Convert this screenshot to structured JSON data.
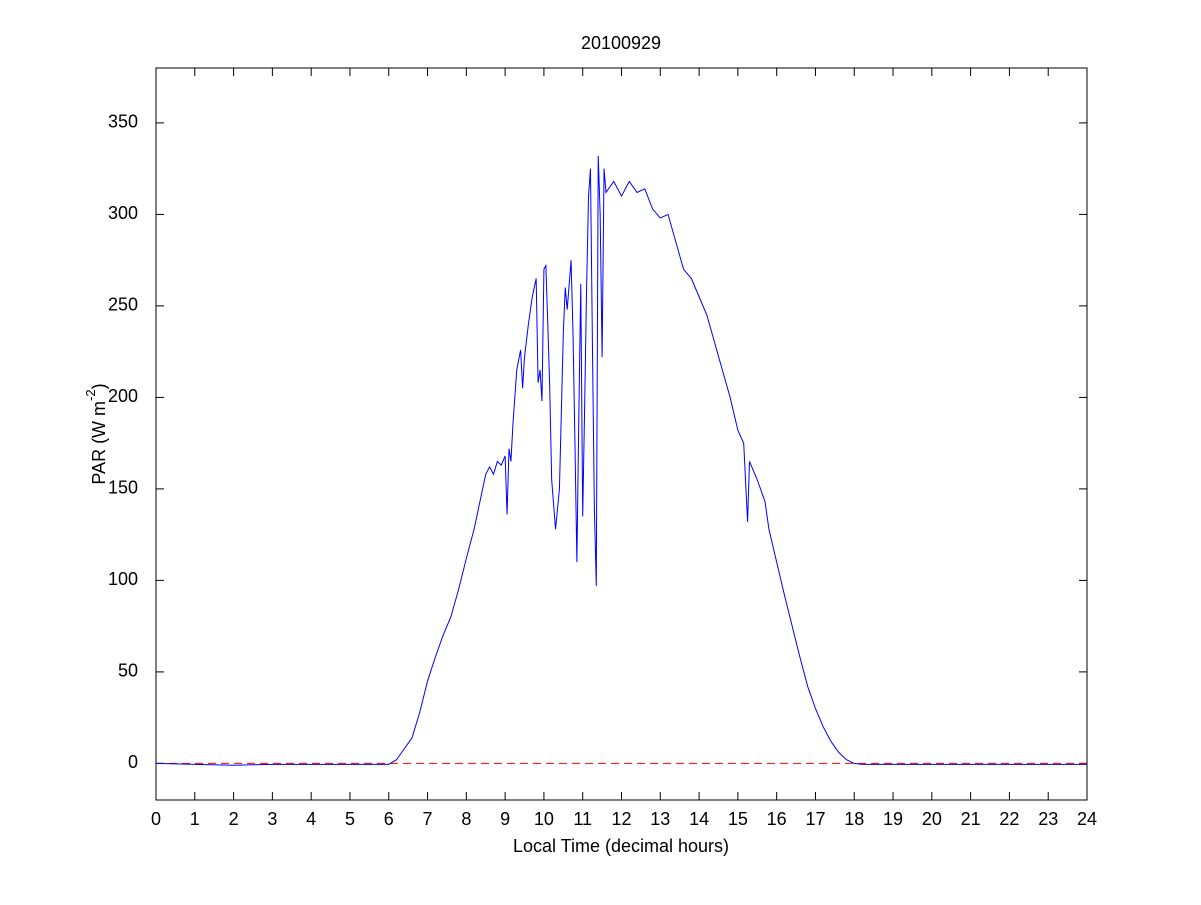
{
  "chart_data": {
    "type": "line",
    "title": "20100929",
    "xlabel": "Local Time (decimal hours)",
    "ylabel": [
      "PAR (W m",
      "-2",
      ")"
    ],
    "xlim": [
      0,
      24
    ],
    "xticks": [
      0,
      1,
      2,
      3,
      4,
      5,
      6,
      7,
      8,
      9,
      10,
      11,
      12,
      13,
      14,
      15,
      16,
      17,
      18,
      19,
      20,
      21,
      22,
      23,
      24
    ],
    "ylim": [
      -20,
      380
    ],
    "yticks": [
      0,
      50,
      100,
      150,
      200,
      250,
      300,
      350
    ],
    "reference_line": {
      "value": 0,
      "color": "#ff0000",
      "style": "dashed"
    },
    "series": [
      {
        "color": "#0000ff",
        "x": [
          0,
          1,
          2,
          3,
          4,
          5,
          6,
          6.2,
          6.4,
          6.6,
          6.8,
          7.0,
          7.2,
          7.4,
          7.6,
          7.8,
          8.0,
          8.2,
          8.4,
          8.5,
          8.6,
          8.7,
          8.8,
          8.9,
          9.0,
          9.05,
          9.1,
          9.15,
          9.2,
          9.3,
          9.4,
          9.45,
          9.5,
          9.6,
          9.7,
          9.8,
          9.85,
          9.9,
          9.95,
          10.0,
          10.05,
          10.1,
          10.15,
          10.2,
          10.3,
          10.4,
          10.5,
          10.55,
          10.6,
          10.7,
          10.75,
          10.8,
          10.85,
          10.9,
          10.95,
          11.0,
          11.05,
          11.1,
          11.15,
          11.2,
          11.25,
          11.3,
          11.35,
          11.4,
          11.45,
          11.5,
          11.55,
          11.6,
          11.8,
          12.0,
          12.2,
          12.4,
          12.6,
          12.8,
          13.0,
          13.2,
          13.4,
          13.6,
          13.8,
          14.0,
          14.2,
          14.4,
          14.6,
          14.8,
          15.0,
          15.15,
          15.25,
          15.3,
          15.5,
          15.7,
          15.8,
          16.0,
          16.2,
          16.4,
          16.6,
          16.8,
          17.0,
          17.2,
          17.4,
          17.6,
          17.8,
          18.0,
          18.2,
          19,
          24
        ],
        "values": [
          0,
          -0.5,
          -1,
          -0.5,
          -0.5,
          -0.5,
          -0.5,
          2,
          8,
          14,
          28,
          45,
          58,
          70,
          80,
          95,
          112,
          128,
          148,
          158,
          162,
          158,
          165,
          163,
          168,
          136,
          172,
          165,
          185,
          215,
          226,
          205,
          222,
          240,
          255,
          265,
          208,
          215,
          198,
          270,
          272,
          240,
          205,
          155,
          128,
          150,
          235,
          260,
          248,
          275,
          235,
          175,
          110,
          190,
          262,
          135,
          195,
          260,
          310,
          325,
          230,
          140,
          97,
          332,
          300,
          222,
          325,
          312,
          318,
          310,
          318,
          312,
          314,
          303,
          298,
          300,
          285,
          270,
          265,
          255,
          245,
          230,
          215,
          200,
          182,
          175,
          132,
          165,
          155,
          143,
          128,
          110,
          92,
          75,
          58,
          42,
          30,
          20,
          12,
          6,
          2,
          0,
          -0.5,
          -0.5,
          -0.5
        ]
      }
    ]
  }
}
